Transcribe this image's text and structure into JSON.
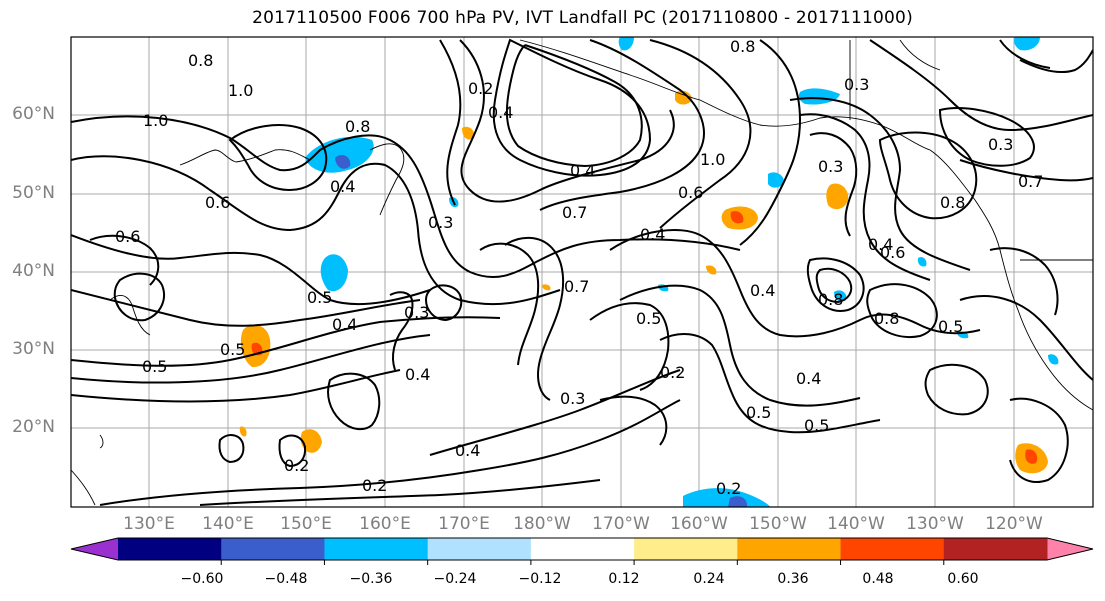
{
  "title": "2017110500 F006 700 hPa PV, IVT Landfall PC (2017110800 - 2017111000)",
  "lat_labels": [
    "60°N",
    "50°N",
    "40°N",
    "30°N",
    "20°N"
  ],
  "lon_labels": [
    "130°E",
    "140°E",
    "150°E",
    "160°E",
    "170°E",
    "180°W",
    "170°W",
    "160°W",
    "150°W",
    "140°W",
    "130°W",
    "120°W"
  ],
  "contour_labels": [
    "0.8",
    "1.0",
    "1.0",
    "0.8",
    "0.8",
    "0.6",
    "0.6",
    "0.4",
    "0.5",
    "0.4",
    "0.3",
    "0.5",
    "0.5",
    "0.4",
    "0.3",
    "0.4",
    "0.2",
    "0.2",
    "0.4",
    "0.2",
    "0.7",
    "0.5",
    "0.4",
    "0.3",
    "0.2",
    "0.4",
    "0.6",
    "1.0",
    "0.3",
    "0.3",
    "0.4",
    "0.6",
    "0.8",
    "0.5",
    "0.4",
    "0.5",
    "0.8",
    "0.7",
    "0.3",
    "0.5",
    "0.2",
    "0.4",
    "0.8",
    "0.7"
  ],
  "colorbar": {
    "colors": [
      "#9b30d0",
      "#000080",
      "#3a5fcd",
      "#00bfff",
      "#b0e2ff",
      "#ffffff",
      "#ffec8b",
      "#ffa500",
      "#ff4500",
      "#b22222",
      "#ff82ab"
    ],
    "tick_labels": [
      "−0.60",
      "−0.48",
      "−0.36",
      "−0.24",
      "−0.12",
      "0.12",
      "0.24",
      "0.36",
      "0.48",
      "0.60"
    ]
  }
}
